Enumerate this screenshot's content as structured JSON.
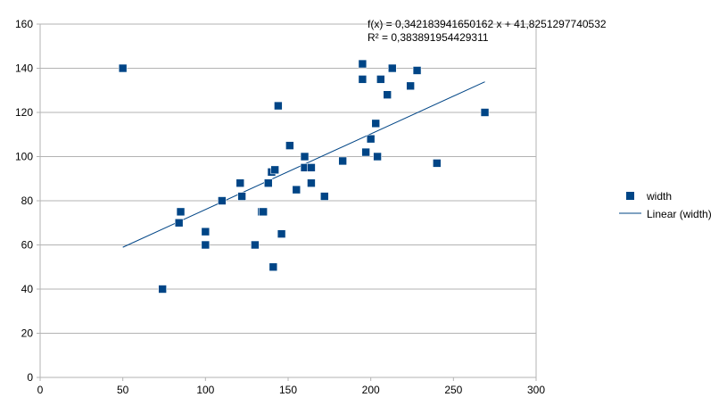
{
  "colors": {
    "marker": "#004586",
    "trendline": "#004586",
    "grid": "#b3b3b3",
    "axis": "#b3b3b3",
    "background": "#ffffff"
  },
  "chart_data": {
    "type": "scatter",
    "title": "",
    "xlabel": "",
    "ylabel": "",
    "xlim": [
      0,
      300
    ],
    "ylim": [
      0,
      160
    ],
    "x_ticks": [
      0,
      50,
      100,
      150,
      200,
      250,
      300
    ],
    "y_ticks": [
      0,
      20,
      40,
      60,
      80,
      100,
      120,
      140,
      160
    ],
    "grid": "horizontal",
    "legend_position": "right",
    "series": [
      {
        "name": "width",
        "marker": "square",
        "points": [
          [
            50,
            140
          ],
          [
            74,
            40
          ],
          [
            84,
            70
          ],
          [
            85,
            75
          ],
          [
            100,
            66
          ],
          [
            100,
            60
          ],
          [
            110,
            80
          ],
          [
            121,
            88
          ],
          [
            122,
            82
          ],
          [
            130,
            60
          ],
          [
            134,
            75
          ],
          [
            135,
            75
          ],
          [
            138,
            88
          ],
          [
            140,
            93
          ],
          [
            141,
            50
          ],
          [
            142,
            94
          ],
          [
            144,
            123
          ],
          [
            146,
            65
          ],
          [
            151,
            105
          ],
          [
            155,
            85
          ],
          [
            160,
            100
          ],
          [
            160,
            95
          ],
          [
            164,
            95
          ],
          [
            164,
            88
          ],
          [
            172,
            82
          ],
          [
            183,
            98
          ],
          [
            195,
            142
          ],
          [
            195,
            135
          ],
          [
            197,
            102
          ],
          [
            200,
            108
          ],
          [
            203,
            115
          ],
          [
            204,
            100
          ],
          [
            206,
            135
          ],
          [
            210,
            128
          ],
          [
            213,
            140
          ],
          [
            224,
            132
          ],
          [
            228,
            139
          ],
          [
            240,
            97
          ],
          [
            269,
            120
          ]
        ]
      }
    ],
    "trendline": {
      "name": "Linear (width)",
      "slope": 0.342183941650162,
      "intercept": 41.8251297740532,
      "x_range": [
        50,
        269
      ],
      "equation_label": "f(x) = 0,342183941650162 x + 41,8251297740532",
      "r2_label": "R² = 0,383891954429311"
    }
  }
}
